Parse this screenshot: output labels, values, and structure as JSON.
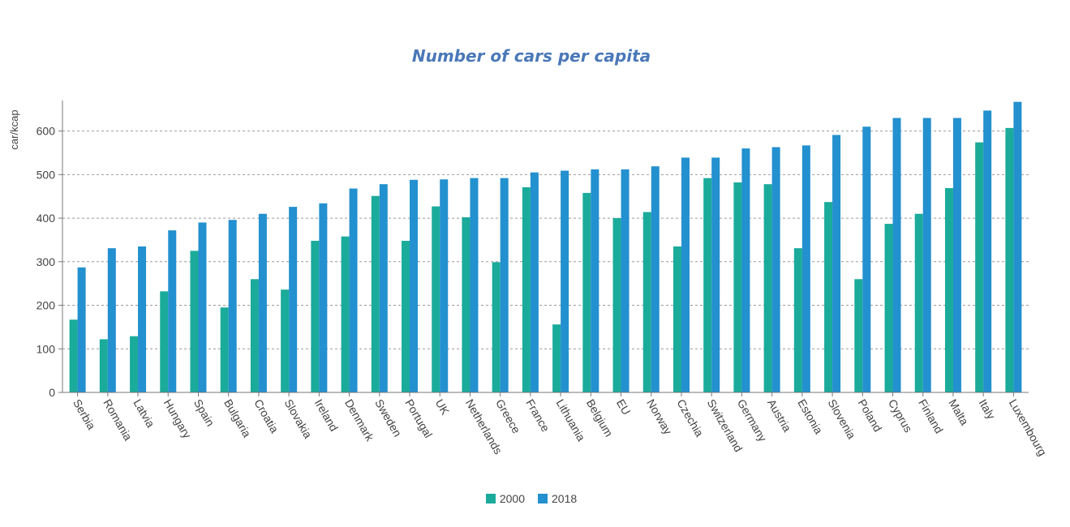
{
  "chart_data": {
    "type": "bar",
    "title": "Number of cars per capita",
    "ylabel": "car/kcap",
    "xlabel": "",
    "ylim": [
      0,
      670
    ],
    "yticks": [
      0,
      100,
      200,
      300,
      400,
      500,
      600
    ],
    "grid": true,
    "legend_position": "bottom",
    "categories": [
      "Serbia",
      "Romania",
      "Latvia",
      "Hungary",
      "Spain",
      "Bulgaria",
      "Croatia",
      "Slovakia",
      "Ireland",
      "Denmark",
      "Sweden",
      "Portugal",
      "UK",
      "Netherlands",
      "Greece",
      "France",
      "Lithuania",
      "Belgium",
      "EU",
      "Norway",
      "Czechia",
      "Switzerland",
      "Germany",
      "Austria",
      "Estonia",
      "Slovenia",
      "Poland",
      "Cyprus",
      "Finland",
      "Malta",
      "Italy",
      "Luxembourg"
    ],
    "series": [
      {
        "name": "2000",
        "color": "#1aab9b",
        "values": [
          167,
          122,
          129,
          232,
          325,
          195,
          260,
          236,
          348,
          358,
          451,
          348,
          427,
          402,
          299,
          471,
          156,
          458,
          400,
          414,
          335,
          492,
          482,
          478,
          331,
          437,
          260,
          387,
          410,
          469,
          574,
          607
        ]
      },
      {
        "name": "2018",
        "color": "#2390cf",
        "values": [
          287,
          331,
          335,
          372,
          390,
          396,
          410,
          426,
          434,
          468,
          478,
          488,
          489,
          492,
          492,
          505,
          509,
          512,
          512,
          519,
          539,
          539,
          560,
          563,
          567,
          591,
          610,
          630,
          630,
          630,
          647,
          667
        ]
      }
    ]
  }
}
